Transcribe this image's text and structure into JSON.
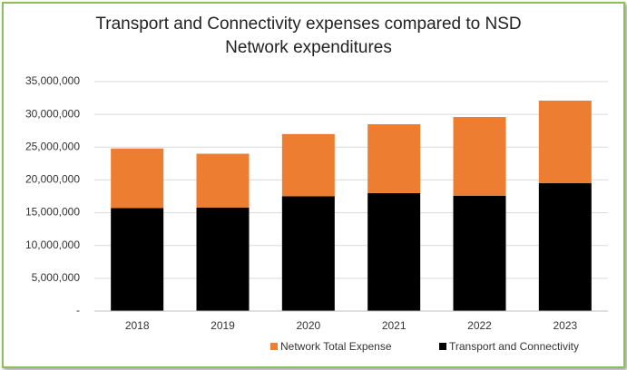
{
  "chart_data": {
    "type": "stacked-bar",
    "title": "Transport and Connectivity expenses compared to NSD Network expenditures",
    "categories": [
      "2018",
      "2019",
      "2020",
      "2021",
      "2022",
      "2023"
    ],
    "series": [
      {
        "name": "Network Total Expense",
        "color": "#ed7d31",
        "values": [
          9100000,
          8200000,
          9500000,
          10500000,
          12000000,
          12600000
        ]
      },
      {
        "name": "Transport and Connectivity",
        "color": "#000000",
        "values": [
          15700000,
          15800000,
          17500000,
          18000000,
          17600000,
          19500000
        ]
      }
    ],
    "ylim": [
      0,
      35000000
    ],
    "yticks": [
      {
        "value": 0,
        "label": "-"
      },
      {
        "value": 5000000,
        "label": "5,000,000"
      },
      {
        "value": 10000000,
        "label": "10,000,000"
      },
      {
        "value": 15000000,
        "label": "15,000,000"
      },
      {
        "value": 20000000,
        "label": "20,000,000"
      },
      {
        "value": 25000000,
        "label": "25,000,000"
      },
      {
        "value": 30000000,
        "label": "30,000,000"
      },
      {
        "value": 35000000,
        "label": "35,000,000"
      }
    ],
    "grid": true,
    "legend": "bottom"
  }
}
